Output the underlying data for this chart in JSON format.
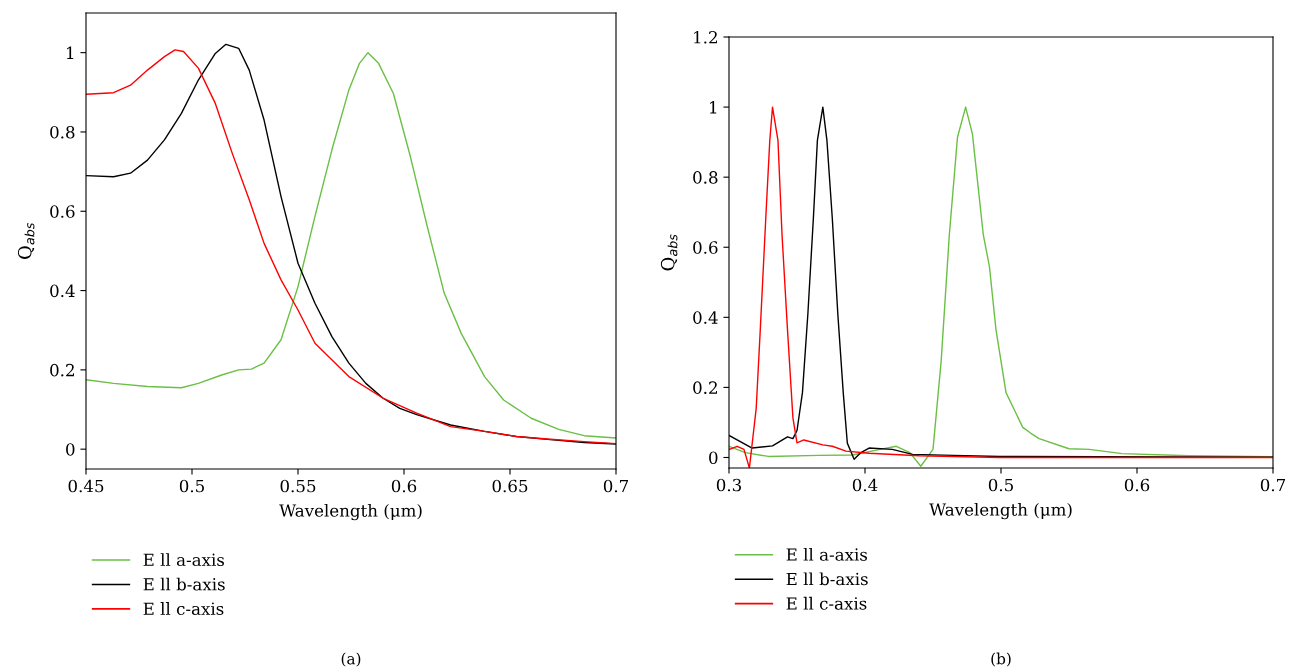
{
  "chart_data": [
    {
      "type": "line",
      "xlabel": "Wavelength (μm)",
      "ylabel": "Q$_{abs}$",
      "xlim": [
        0.45,
        0.7
      ],
      "ylim": [
        -0.05,
        1.1
      ],
      "xticks": [
        0.45,
        0.5,
        0.55,
        0.6,
        0.65,
        0.7
      ],
      "yticks": [
        0,
        0.2,
        0.4,
        0.6,
        0.8,
        1
      ],
      "grid": false,
      "legend": "bottom",
      "marker": "none",
      "line_style": "solid",
      "annotations": [
        "(a)"
      ],
      "series": [
        {
          "name": "E ll a-axis",
          "color": "#6abf45",
          "x": [
            0.45,
            0.463,
            0.479,
            0.495,
            0.503,
            0.514,
            0.522,
            0.528,
            0.534,
            0.542,
            0.55,
            0.558,
            0.566,
            0.574,
            0.579,
            0.583,
            0.588,
            0.595,
            0.603,
            0.611,
            0.619,
            0.627,
            0.638,
            0.647,
            0.66,
            0.673,
            0.685,
            0.7
          ],
          "values": [
            0.175,
            0.166,
            0.158,
            0.155,
            0.166,
            0.187,
            0.2,
            0.202,
            0.217,
            0.276,
            0.41,
            0.587,
            0.755,
            0.906,
            0.973,
            1.0,
            0.973,
            0.897,
            0.738,
            0.561,
            0.393,
            0.292,
            0.183,
            0.124,
            0.078,
            0.05,
            0.034,
            0.028
          ]
        },
        {
          "name": "E ll b-axis",
          "color": "#000000",
          "x": [
            0.45,
            0.463,
            0.471,
            0.479,
            0.487,
            0.495,
            0.503,
            0.511,
            0.516,
            0.522,
            0.527,
            0.534,
            0.542,
            0.55,
            0.558,
            0.566,
            0.574,
            0.582,
            0.59,
            0.598,
            0.606,
            0.622,
            0.638,
            0.653,
            0.669,
            0.685,
            0.7
          ],
          "values": [
            0.69,
            0.687,
            0.696,
            0.729,
            0.78,
            0.847,
            0.931,
            0.998,
            1.021,
            1.011,
            0.956,
            0.83,
            0.637,
            0.469,
            0.368,
            0.284,
            0.217,
            0.166,
            0.129,
            0.103,
            0.087,
            0.061,
            0.045,
            0.032,
            0.024,
            0.017,
            0.013
          ]
        },
        {
          "name": "E ll c-axis",
          "color": "#ff0000",
          "x": [
            0.45,
            0.463,
            0.471,
            0.479,
            0.487,
            0.492,
            0.496,
            0.503,
            0.511,
            0.519,
            0.527,
            0.534,
            0.542,
            0.55,
            0.558,
            0.574,
            0.59,
            0.606,
            0.622,
            0.638,
            0.653,
            0.669,
            0.685,
            0.7
          ],
          "values": [
            0.895,
            0.899,
            0.918,
            0.956,
            0.99,
            1.007,
            1.003,
            0.961,
            0.872,
            0.746,
            0.629,
            0.519,
            0.427,
            0.351,
            0.267,
            0.183,
            0.129,
            0.091,
            0.057,
            0.045,
            0.032,
            0.025,
            0.019,
            0.014
          ]
        }
      ]
    },
    {
      "type": "line",
      "xlabel": "Wavelength (μm)",
      "ylabel": "Q$_{abs}$",
      "xlim": [
        0.3,
        0.7
      ],
      "ylim": [
        -0.03,
        1.2
      ],
      "xticks": [
        0.3,
        0.4,
        0.5,
        0.6,
        0.7
      ],
      "yticks": [
        0,
        0.2,
        0.4,
        0.6,
        0.8,
        1,
        1.2
      ],
      "grid": false,
      "legend": "bottom",
      "marker": "none",
      "line_style": "solid",
      "annotations": [
        "(b)"
      ],
      "series": [
        {
          "name": "E ll a-axis",
          "color": "#6abf45",
          "x": [
            0.3,
            0.312,
            0.329,
            0.366,
            0.391,
            0.411,
            0.423,
            0.433,
            0.441,
            0.45,
            0.456,
            0.462,
            0.468,
            0.474,
            0.479,
            0.487,
            0.4915,
            0.4963,
            0.5037,
            0.516,
            0.522,
            0.528,
            0.55,
            0.565,
            0.589,
            0.638,
            0.7
          ],
          "values": [
            0.032,
            0.014,
            0.003,
            0.006,
            0.007,
            0.023,
            0.032,
            0.014,
            -0.025,
            0.023,
            0.275,
            0.635,
            0.914,
            1.0,
            0.923,
            0.635,
            0.545,
            0.365,
            0.185,
            0.086,
            0.069,
            0.054,
            0.025,
            0.023,
            0.011,
            0.005,
            0.002
          ]
        },
        {
          "name": "E ll b-axis",
          "color": "#000000",
          "x": [
            0.3,
            0.317,
            0.332,
            0.343,
            0.347,
            0.35,
            0.354,
            0.358,
            0.362,
            0.365,
            0.369,
            0.372,
            0.376,
            0.38,
            0.384,
            0.387,
            0.392,
            0.397,
            0.403,
            0.42,
            0.435,
            0.465,
            0.499,
            0.7
          ],
          "values": [
            0.063,
            0.027,
            0.033,
            0.059,
            0.054,
            0.077,
            0.185,
            0.41,
            0.68,
            0.905,
            1.0,
            0.905,
            0.68,
            0.41,
            0.185,
            0.041,
            -0.005,
            0.014,
            0.027,
            0.023,
            0.009,
            0.006,
            0.003,
            0.001
          ]
        },
        {
          "name": "E ll c-axis",
          "color": "#ff0000",
          "x": [
            0.3,
            0.306,
            0.311,
            0.315,
            0.32,
            0.323,
            0.327,
            0.33,
            0.332,
            0.336,
            0.339,
            0.343,
            0.347,
            0.35,
            0.355,
            0.369,
            0.376,
            0.386,
            0.403,
            0.44,
            0.499,
            0.7
          ],
          "values": [
            0.023,
            0.032,
            0.023,
            -0.03,
            0.14,
            0.365,
            0.68,
            0.905,
            1.0,
            0.905,
            0.635,
            0.365,
            0.113,
            0.042,
            0.05,
            0.036,
            0.032,
            0.018,
            0.012,
            0.005,
            0.0,
            0.0
          ]
        }
      ]
    }
  ]
}
